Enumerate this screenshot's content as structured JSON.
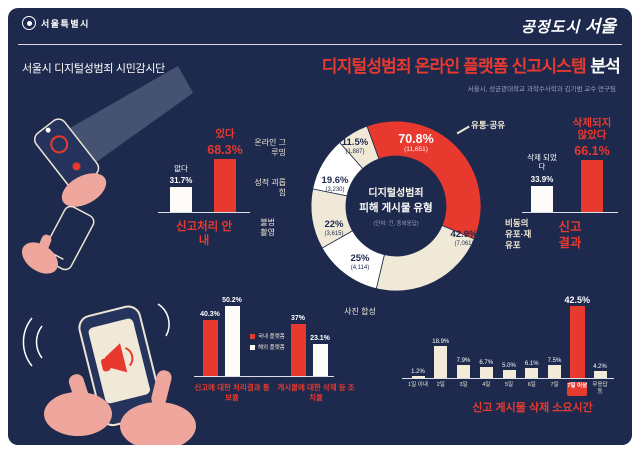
{
  "theme": {
    "bg": "#1d2a4d",
    "accent": "#e8392e",
    "cream": "#f1e9d7",
    "white": "#ffffff",
    "muted": "#96a0ba"
  },
  "header": {
    "city_logo": "서울특별시",
    "slogan_script": "공정도시",
    "slogan_bold": "서울"
  },
  "title": {
    "program": "서울시 디지털성범죄 시민감시단",
    "main_red": "디지털성범죄 온라인 플랫폼 신고시스템",
    "main_suffix": "분석",
    "credit": "서울시, 성균관대학교 과학수사학과 김기범 교수 연구팀"
  },
  "chart_data": [
    {
      "id": "notice_bar",
      "type": "bar",
      "title": "신고처리 안내",
      "categories": [
        "없다",
        "있다"
      ],
      "values": [
        31.7,
        68.3
      ],
      "value_labels": [
        "31.7%",
        "68.3%"
      ],
      "colors": [
        "#fdfcf8",
        "#e8392e"
      ],
      "highlight": "있다"
    },
    {
      "id": "post_type_donut",
      "type": "pie",
      "center_title_1": "디지털성범죄",
      "center_title_2": "피해 게시물 유형",
      "unit_note": "(단위: 건, 중복응답)",
      "start_angle_deg": -20,
      "segments": [
        {
          "label": "유통·공유",
          "pct": 70.8,
          "pct_label": "70.8%",
          "count": "(11,651)",
          "color": "#e8392e"
        },
        {
          "label": "비동의 유포·재유포",
          "pct": 42.9,
          "pct_label": "42.9%",
          "count": "(7,061)",
          "color": "#f1e9d7"
        },
        {
          "label": "사진 합성",
          "pct": 25,
          "pct_label": "25%",
          "count": "(4,114)",
          "color": "#ffffff"
        },
        {
          "label": "불법촬영",
          "pct": 22,
          "pct_label": "22%",
          "count": "(3,615)",
          "color": "#f1e9d7"
        },
        {
          "label": "성적 괴롭힘",
          "pct": 19.6,
          "pct_label": "19.6%",
          "count": "(3,230)",
          "color": "#ffffff"
        },
        {
          "label": "온라인 그루밍",
          "pct": 11.5,
          "pct_label": "11.5%",
          "count": "(1,887)",
          "color": "#f1e9d7"
        }
      ]
    },
    {
      "id": "report_result_bar",
      "type": "bar",
      "title": "신고 결과",
      "categories": [
        "삭제 되었다",
        "삭제되지 않았다"
      ],
      "values": [
        33.9,
        66.1
      ],
      "value_labels": [
        "33.9%",
        "66.1%"
      ],
      "colors": [
        "#fdfcf8",
        "#e8392e"
      ],
      "highlight": "삭제되지 않았다"
    },
    {
      "id": "platform_compare_bar",
      "type": "bar",
      "legend": [
        "국내 플랫폼",
        "해외 플랫폼"
      ],
      "legend_colors": [
        "#e8392e",
        "#fdfcf8"
      ],
      "groups": [
        {
          "label": "신고에 대한 처리결과 통보율",
          "values": [
            40.3,
            50.2
          ],
          "value_labels": [
            "40.3%",
            "50.2%"
          ]
        },
        {
          "label": "게시물에 대한 삭제 등 조치율",
          "values": [
            37,
            23.1
          ],
          "value_labels": [
            "37%",
            "23.1%"
          ]
        }
      ]
    },
    {
      "id": "deletion_time_bar",
      "type": "bar",
      "title": "신고 게시물 삭제 소요시간",
      "categories": [
        "1일 이내",
        "2일",
        "3일",
        "4일",
        "5일",
        "6일",
        "7일",
        "7일 이상",
        "무응답 등"
      ],
      "values": [
        1.2,
        18.9,
        7.9,
        6.7,
        5.0,
        6.1,
        7.5,
        42.5,
        4.2
      ],
      "value_labels": [
        "1.2%",
        "18.9%",
        "7.9%",
        "6.7%",
        "5.0%",
        "6.1%",
        "7.5%",
        "42.5%",
        "4.2%"
      ],
      "highlight_index": 7
    }
  ]
}
